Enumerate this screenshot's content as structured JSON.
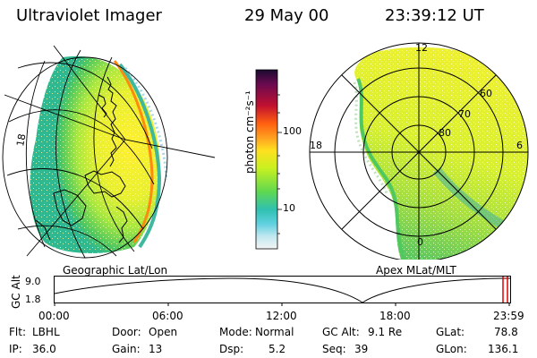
{
  "header": {
    "title": "Ultraviolet Imager",
    "date": "29 May 00",
    "time": "23:39:12 UT"
  },
  "colorbar": {
    "unit_label": "photon cm⁻²s⁻¹",
    "ticks": [
      "100",
      "10"
    ],
    "colors": [
      "#1a0a30",
      "#6a0a50",
      "#c01030",
      "#ff6010",
      "#ffa020",
      "#ffe020",
      "#c8f020",
      "#60d850",
      "#30c0b0",
      "#60d0e0",
      "#c0e8f0",
      "#f4f4f4"
    ]
  },
  "left_panel": {
    "caption": "Geographic Lat/Lon"
  },
  "right_panel": {
    "caption": "Apex MLat/MLT",
    "mlt_labels": {
      "top": "12",
      "left": "18",
      "right": "6",
      "bottom": "0"
    },
    "lat_labels": [
      "60",
      "70",
      "80"
    ]
  },
  "timeline": {
    "ylabel": "GC Alt",
    "y_ticks": [
      "9.0",
      "1.8"
    ],
    "x_ticks": [
      "00:00",
      "06:00",
      "12:00",
      "18:00",
      "23:59"
    ],
    "current_marker_color": "#e00000"
  },
  "status": {
    "flt_label": "Flt:",
    "flt_value": "LBHL",
    "ip_label": "IP:",
    "ip_value": "36.0",
    "door_label": "Door:",
    "door_value": "Open",
    "gain_label": "Gain:",
    "gain_value": "13",
    "mode_label": "Mode:",
    "mode_value": "Normal",
    "dsp_label": "Dsp:",
    "dsp_value": "5.2",
    "gcalt_label": "GC Alt:",
    "gcalt_value": "9.1 Re",
    "seq_label": "Seq:",
    "seq_value": "39",
    "glat_label": "GLat:",
    "glat_value": "78.8",
    "glon_label": "GLon:",
    "glon_value": "136.1"
  }
}
